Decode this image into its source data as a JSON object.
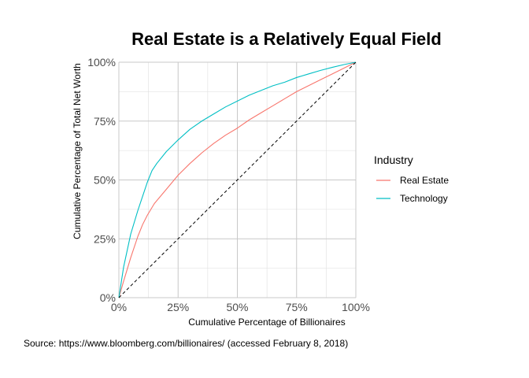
{
  "chart_data": {
    "type": "line",
    "title": "Real Estate is a Relatively Equal Field",
    "xlabel": "Cumulative Percentage of Billionaires",
    "ylabel": "Cumulative Percentage of Total Net Worth",
    "caption": "Source: https://www.bloomberg.com/billionaires/ (accessed February 8, 2018)",
    "xlim": [
      0,
      1
    ],
    "ylim": [
      0,
      1
    ],
    "x_ticks": [
      0,
      0.25,
      0.5,
      0.75,
      1
    ],
    "x_tick_labels": [
      "0%",
      "25%",
      "50%",
      "75%",
      "100%"
    ],
    "y_ticks": [
      0,
      0.25,
      0.5,
      0.75,
      1
    ],
    "y_tick_labels": [
      "0%",
      "25%",
      "50%",
      "75%",
      "100%"
    ],
    "grid": true,
    "legend": {
      "title": "Industry",
      "position": "right"
    },
    "series": [
      {
        "name": "Real Estate",
        "color": "#F8766D",
        "x": [
          0,
          0.02,
          0.05,
          0.08,
          0.1,
          0.12,
          0.15,
          0.2,
          0.25,
          0.3,
          0.35,
          0.4,
          0.45,
          0.5,
          0.55,
          0.6,
          0.65,
          0.7,
          0.75,
          0.8,
          0.85,
          0.9,
          0.95,
          1.0
        ],
        "y": [
          0,
          0.07,
          0.17,
          0.26,
          0.31,
          0.35,
          0.4,
          0.46,
          0.52,
          0.57,
          0.615,
          0.655,
          0.69,
          0.72,
          0.755,
          0.785,
          0.815,
          0.845,
          0.875,
          0.9,
          0.925,
          0.95,
          0.975,
          1.0
        ]
      },
      {
        "name": "Technology",
        "color": "#00BFC4",
        "x": [
          0,
          0.02,
          0.05,
          0.08,
          0.1,
          0.12,
          0.14,
          0.16,
          0.2,
          0.25,
          0.3,
          0.35,
          0.4,
          0.45,
          0.5,
          0.55,
          0.6,
          0.65,
          0.7,
          0.75,
          0.8,
          0.85,
          0.9,
          0.95,
          1.0
        ],
        "y": [
          0,
          0.13,
          0.27,
          0.37,
          0.43,
          0.49,
          0.54,
          0.57,
          0.62,
          0.67,
          0.715,
          0.75,
          0.78,
          0.81,
          0.835,
          0.86,
          0.88,
          0.9,
          0.915,
          0.935,
          0.95,
          0.965,
          0.978,
          0.99,
          1.0
        ]
      },
      {
        "x": [
          0,
          1
        ],
        "y": [
          0,
          1
        ],
        "color": "#000000",
        "style": "dashed"
      }
    ]
  }
}
